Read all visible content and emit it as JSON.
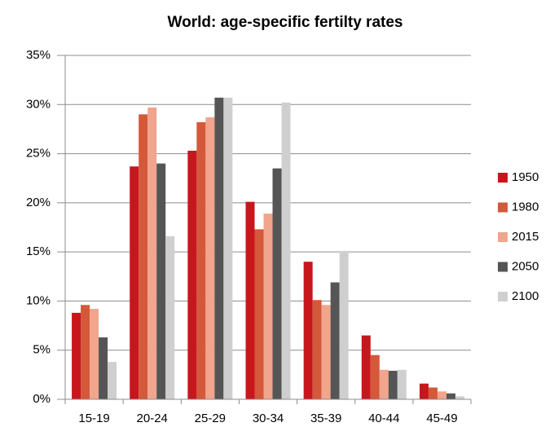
{
  "chart_data": {
    "type": "bar",
    "title": "World: age-specific fertilty rates",
    "categories": [
      "15-19",
      "20-24",
      "25-29",
      "30-34",
      "35-39",
      "40-44",
      "45-49"
    ],
    "series": [
      {
        "name": "1950",
        "color": "#c8161d",
        "values": [
          8.8,
          23.7,
          25.3,
          20.1,
          14.0,
          6.5,
          1.6
        ]
      },
      {
        "name": "1980",
        "color": "#d4583a",
        "values": [
          9.6,
          29.0,
          28.2,
          17.3,
          10.1,
          4.5,
          1.2
        ]
      },
      {
        "name": "2015",
        "color": "#f0a58c",
        "values": [
          9.2,
          29.7,
          28.7,
          18.9,
          9.6,
          3.0,
          0.8
        ]
      },
      {
        "name": "2050",
        "color": "#555555",
        "values": [
          6.3,
          24.0,
          30.7,
          23.5,
          11.9,
          2.9,
          0.6
        ]
      },
      {
        "name": "2100",
        "color": "#cfcfcf",
        "values": [
          3.8,
          16.6,
          30.7,
          30.2,
          15.1,
          3.0,
          0.3
        ]
      }
    ],
    "ylim": [
      0,
      35
    ],
    "yticks": [
      {
        "value": 0,
        "label": "0%"
      },
      {
        "value": 5,
        "label": "5%"
      },
      {
        "value": 10,
        "label": "10%"
      },
      {
        "value": 15,
        "label": "15%"
      },
      {
        "value": 20,
        "label": "20%"
      },
      {
        "value": 25,
        "label": "25%"
      },
      {
        "value": 30,
        "label": "30%"
      },
      {
        "value": 35,
        "label": "35%"
      }
    ],
    "grid": true,
    "legend": "right"
  }
}
